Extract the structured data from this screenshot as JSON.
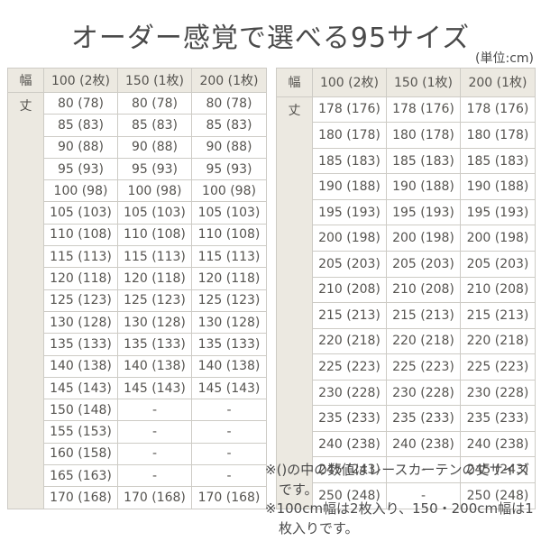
{
  "page": {
    "title": "オーダー感覚で選べる95サイズ",
    "unit_label": "(単位:cm)"
  },
  "tables": [
    {
      "corner_header": "幅",
      "row_header": "丈",
      "columns": [
        "100 (2枚)",
        "150 (1枚)",
        "200 (1枚)"
      ],
      "rows": [
        [
          "80 (78)",
          "80 (78)",
          "80 (78)"
        ],
        [
          "85 (83)",
          "85 (83)",
          "85 (83)"
        ],
        [
          "90 (88)",
          "90 (88)",
          "90 (88)"
        ],
        [
          "95 (93)",
          "95 (93)",
          "95 (93)"
        ],
        [
          "100 (98)",
          "100 (98)",
          "100 (98)"
        ],
        [
          "105 (103)",
          "105 (103)",
          "105 (103)"
        ],
        [
          "110 (108)",
          "110 (108)",
          "110 (108)"
        ],
        [
          "115 (113)",
          "115 (113)",
          "115 (113)"
        ],
        [
          "120 (118)",
          "120 (118)",
          "120 (118)"
        ],
        [
          "125 (123)",
          "125 (123)",
          "125 (123)"
        ],
        [
          "130 (128)",
          "130 (128)",
          "130 (128)"
        ],
        [
          "135 (133)",
          "135 (133)",
          "135 (133)"
        ],
        [
          "140 (138)",
          "140 (138)",
          "140 (138)"
        ],
        [
          "145 (143)",
          "145 (143)",
          "145 (143)"
        ],
        [
          "150 (148)",
          "-",
          "-"
        ],
        [
          "155 (153)",
          "-",
          "-"
        ],
        [
          "160 (158)",
          "-",
          "-"
        ],
        [
          "165 (163)",
          "-",
          "-"
        ],
        [
          "170 (168)",
          "170 (168)",
          "170 (168)"
        ]
      ]
    },
    {
      "corner_header": "幅",
      "row_header": "丈",
      "columns": [
        "100 (2枚)",
        "150 (1枚)",
        "200 (1枚)"
      ],
      "rows": [
        [
          "178 (176)",
          "178 (176)",
          "178 (176)"
        ],
        [
          "180 (178)",
          "180 (178)",
          "180 (178)"
        ],
        [
          "185 (183)",
          "185 (183)",
          "185 (183)"
        ],
        [
          "190 (188)",
          "190 (188)",
          "190 (188)"
        ],
        [
          "195 (193)",
          "195 (193)",
          "195 (193)"
        ],
        [
          "200 (198)",
          "200 (198)",
          "200 (198)"
        ],
        [
          "205 (203)",
          "205 (203)",
          "205 (203)"
        ],
        [
          "210 (208)",
          "210 (208)",
          "210 (208)"
        ],
        [
          "215 (213)",
          "215 (213)",
          "215 (213)"
        ],
        [
          "220 (218)",
          "220 (218)",
          "220 (218)"
        ],
        [
          "225 (223)",
          "225 (223)",
          "225 (223)"
        ],
        [
          "230 (228)",
          "230 (228)",
          "230 (228)"
        ],
        [
          "235 (233)",
          "235 (233)",
          "235 (233)"
        ],
        [
          "240 (238)",
          "240 (238)",
          "240 (238)"
        ],
        [
          "245 (243)",
          "-",
          "245 (243)"
        ],
        [
          "250 (248)",
          "-",
          "250 (248)"
        ]
      ]
    }
  ],
  "notes": [
    "※()の中の数値はレースカーテンの丈サイズです。",
    "※100cm幅は2枚入り、150・200cm幅は1枚入りです。"
  ],
  "colors": {
    "header_bg": "#ece9e1",
    "border": "#cdcbc5",
    "text": "#4a4a4a",
    "cell_bg": "#ffffff"
  }
}
